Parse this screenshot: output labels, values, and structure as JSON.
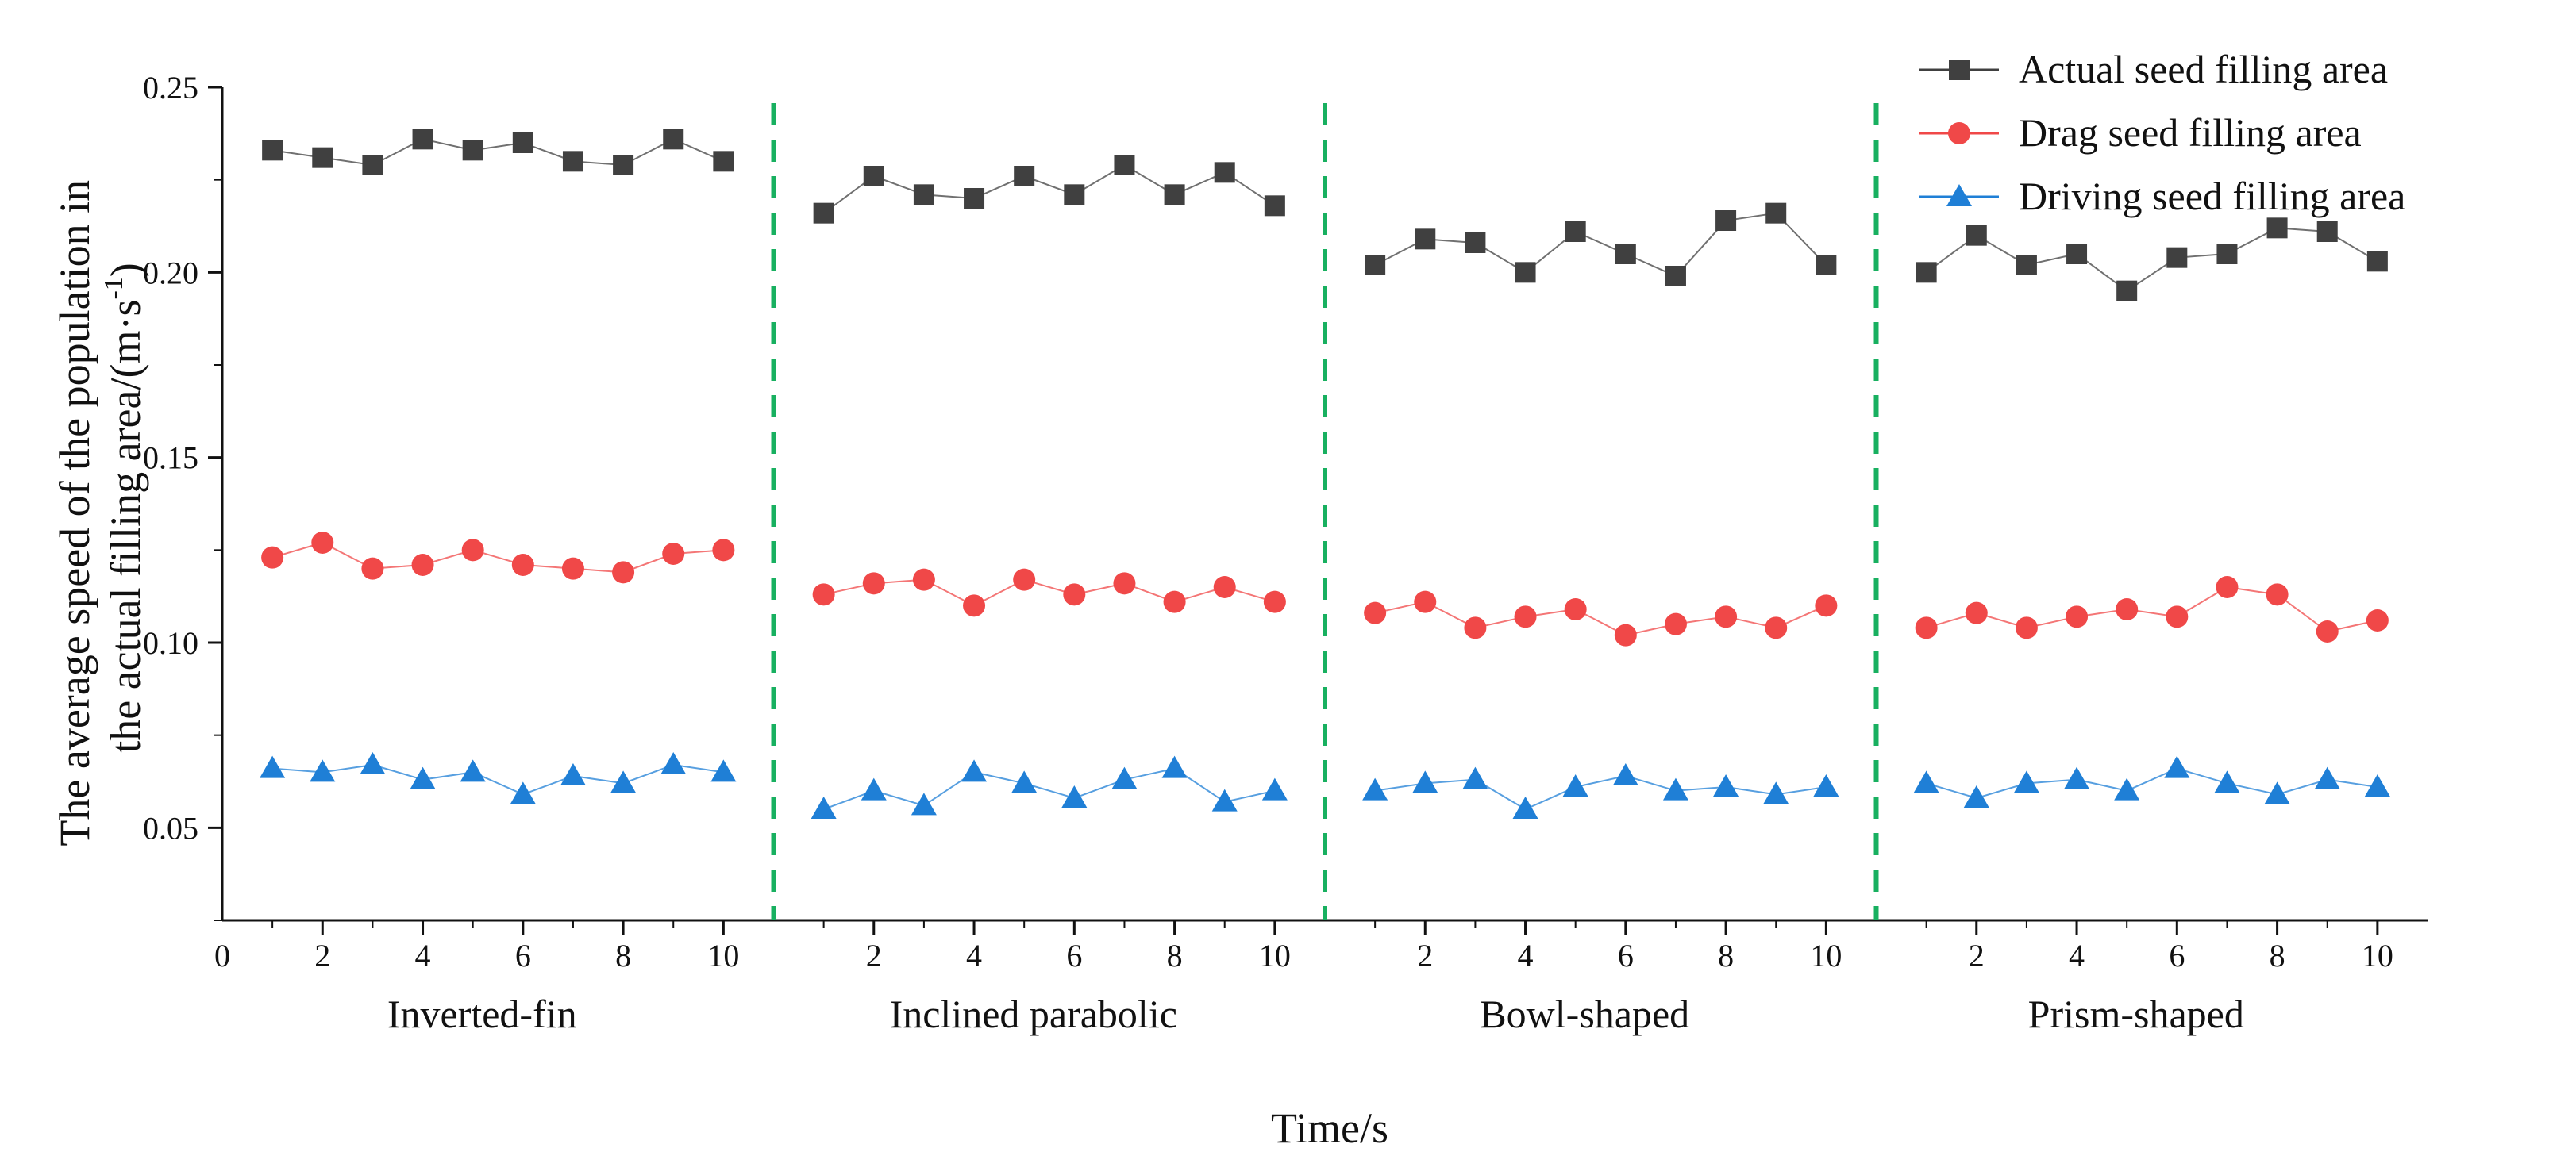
{
  "chart_data": {
    "type": "line",
    "title": "",
    "xlabel": "Time/s",
    "ylabel_line1": "The average speed of the population in",
    "ylabel_line2": "the actual filling area/(m·s",
    "ylabel_sup": "-1",
    "ylabel_close": ")",
    "ylim": [
      0.025,
      0.25
    ],
    "yticks": [
      0.05,
      0.1,
      0.15,
      0.2,
      0.25
    ],
    "ytick_labels": [
      "0.05",
      "0.10",
      "0.15",
      "0.20",
      "0.25"
    ],
    "x": [
      1,
      2,
      3,
      4,
      5,
      6,
      7,
      8,
      9,
      10
    ],
    "xtick_labels": [
      "2",
      "4",
      "6",
      "8",
      "10"
    ],
    "x_origin_label": "0",
    "groups": [
      "Inverted-fin",
      "Inclined parabolic",
      "Bowl-shaped",
      "Prism-shaped"
    ],
    "series": [
      {
        "name": "Actual seed filling area",
        "color": "#404040",
        "marker": "square",
        "values": [
          [
            0.233,
            0.231,
            0.229,
            0.236,
            0.233,
            0.235,
            0.23,
            0.229,
            0.236,
            0.23
          ],
          [
            0.216,
            0.226,
            0.221,
            0.22,
            0.226,
            0.221,
            0.229,
            0.221,
            0.227,
            0.218
          ],
          [
            0.202,
            0.209,
            0.208,
            0.2,
            0.211,
            0.205,
            0.199,
            0.214,
            0.216,
            0.202
          ],
          [
            0.2,
            0.21,
            0.202,
            0.205,
            0.195,
            0.204,
            0.205,
            0.212,
            0.211,
            0.203
          ]
        ]
      },
      {
        "name": "Drag seed filling area",
        "color": "#f04848",
        "marker": "circle",
        "values": [
          [
            0.123,
            0.127,
            0.12,
            0.121,
            0.125,
            0.121,
            0.12,
            0.119,
            0.124,
            0.125
          ],
          [
            0.113,
            0.116,
            0.117,
            0.11,
            0.117,
            0.113,
            0.116,
            0.111,
            0.115,
            0.111
          ],
          [
            0.108,
            0.111,
            0.104,
            0.107,
            0.109,
            0.102,
            0.105,
            0.107,
            0.104,
            0.11
          ],
          [
            0.104,
            0.108,
            0.104,
            0.107,
            0.109,
            0.107,
            0.115,
            0.113,
            0.103,
            0.106
          ]
        ]
      },
      {
        "name": "Driving seed filling area",
        "color": "#1f7fd6",
        "marker": "triangle",
        "values": [
          [
            0.066,
            0.065,
            0.067,
            0.063,
            0.065,
            0.059,
            0.064,
            0.062,
            0.067,
            0.065
          ],
          [
            0.055,
            0.06,
            0.056,
            0.065,
            0.062,
            0.058,
            0.063,
            0.066,
            0.057,
            0.06
          ],
          [
            0.06,
            0.062,
            0.063,
            0.055,
            0.061,
            0.064,
            0.06,
            0.061,
            0.059,
            0.061
          ],
          [
            0.062,
            0.058,
            0.062,
            0.063,
            0.06,
            0.066,
            0.062,
            0.059,
            0.063,
            0.061
          ]
        ]
      }
    ],
    "separator_color": "#18b060",
    "legend_position": "top-right"
  }
}
